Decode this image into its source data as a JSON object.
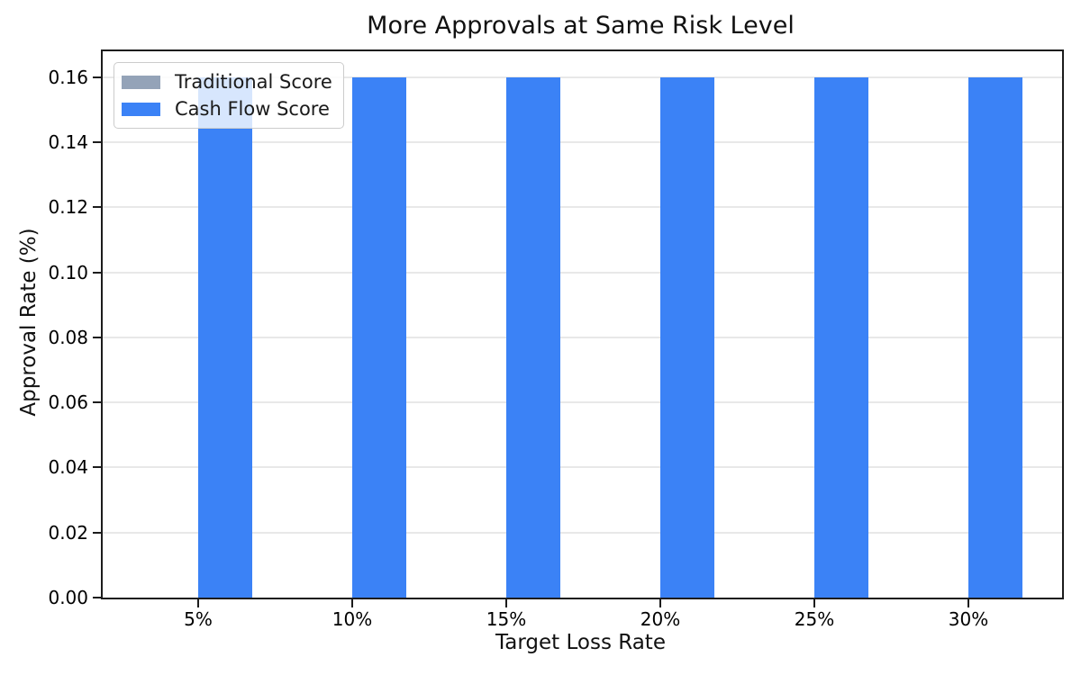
{
  "chart_data": {
    "type": "bar",
    "title": "More Approvals at Same Risk Level",
    "xlabel": "Target Loss Rate",
    "ylabel": "Approval Rate (%)",
    "categories": [
      "5%",
      "10%",
      "15%",
      "20%",
      "25%",
      "30%"
    ],
    "series": [
      {
        "name": "Traditional Score",
        "color": "#94a3b8",
        "values": [
          0,
          0,
          0,
          0,
          0,
          0
        ]
      },
      {
        "name": "Cash Flow Score",
        "color": "#3b82f6",
        "values": [
          0.16,
          0.16,
          0.16,
          0.16,
          0.16,
          0.16
        ]
      }
    ],
    "ylim": [
      0,
      0.168
    ],
    "yticks": [
      0.0,
      0.02,
      0.04,
      0.06,
      0.08,
      0.1,
      0.12,
      0.14,
      0.16
    ],
    "ytick_labels": [
      "0.00",
      "0.02",
      "0.04",
      "0.06",
      "0.08",
      "0.10",
      "0.12",
      "0.14",
      "0.16"
    ],
    "grid": "y",
    "grid_color": "#e8e8e8",
    "legend_position": "upper-left",
    "spine_color": "#1c1c1c",
    "bar_color": "#3b82f6",
    "traditional_color": "#94a3b8"
  }
}
